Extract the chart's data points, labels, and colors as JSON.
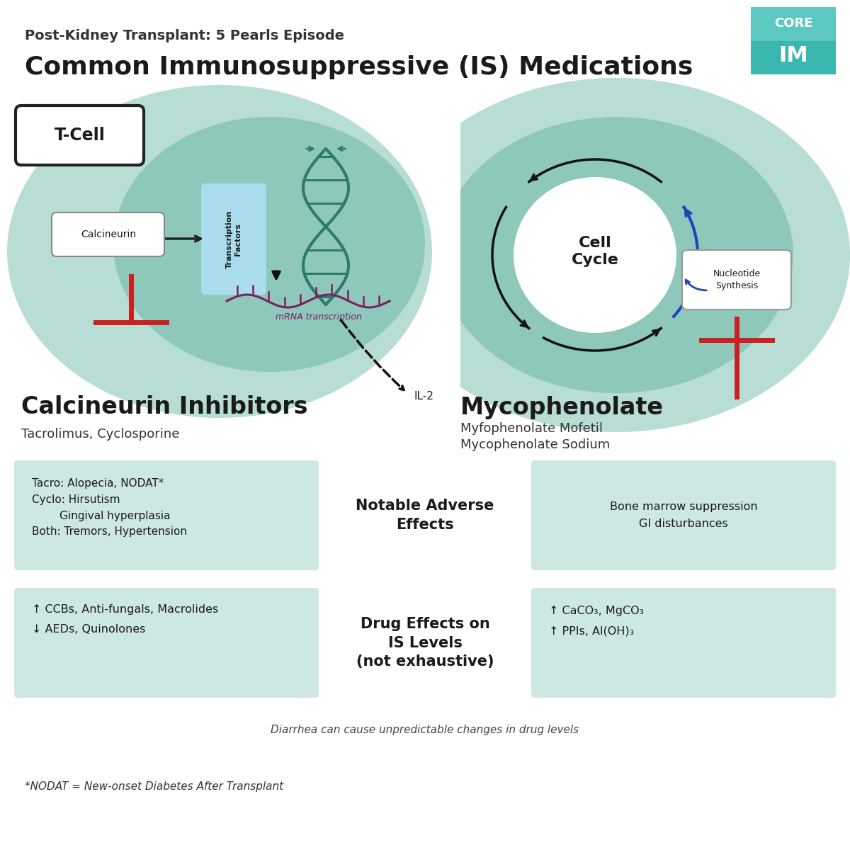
{
  "title_small": "Post-Kidney Transplant: 5 Pearls Episode",
  "title_large": "Common Immunosuppressive (IS) Medications",
  "bg_color": "#ffffff",
  "teal_outer": "#b8ddd5",
  "teal_inner": "#8ec8bb",
  "teal_dark": "#2d7a6e",
  "blue_light": "#aadcee",
  "box_bg": "#cde8e2",
  "red_color": "#cc2020",
  "purple_color": "#7a2060",
  "left_drug_title": "Calcineurin Inhibitors",
  "left_drug_subtitle": "Tacrolimus, Cyclosporine",
  "right_drug_title": "Mycophenolate",
  "right_drug_subtitle": "Myfophenolate Mofetil\nMycophenolate Sodium",
  "adverse_title": "Notable Adverse\nEffects",
  "left_adverse": "Tacro: Alopecia, NODAT*\nCyclo: Hirsutism\n        Gingival hyperplasia\nBoth: Tremors, Hypertension",
  "right_adverse": "Bone marrow suppression\nGI disturbances",
  "drug_effects_title": "Drug Effects on\nIS Levels\n(not exhaustive)",
  "left_drug_effects": "↑ CCBs, Anti-fungals, Macrolides\n↓ AEDs, Quinolones",
  "right_drug_effects": "↑ CaCO₃, MgCO₃\n↑ PPIs, Al(OH)₃",
  "diarrhea_note": "Diarrhea can cause unpredictable changes in drug levels",
  "nodat_note": "*NODAT = New-onset Diabetes After Transplant"
}
